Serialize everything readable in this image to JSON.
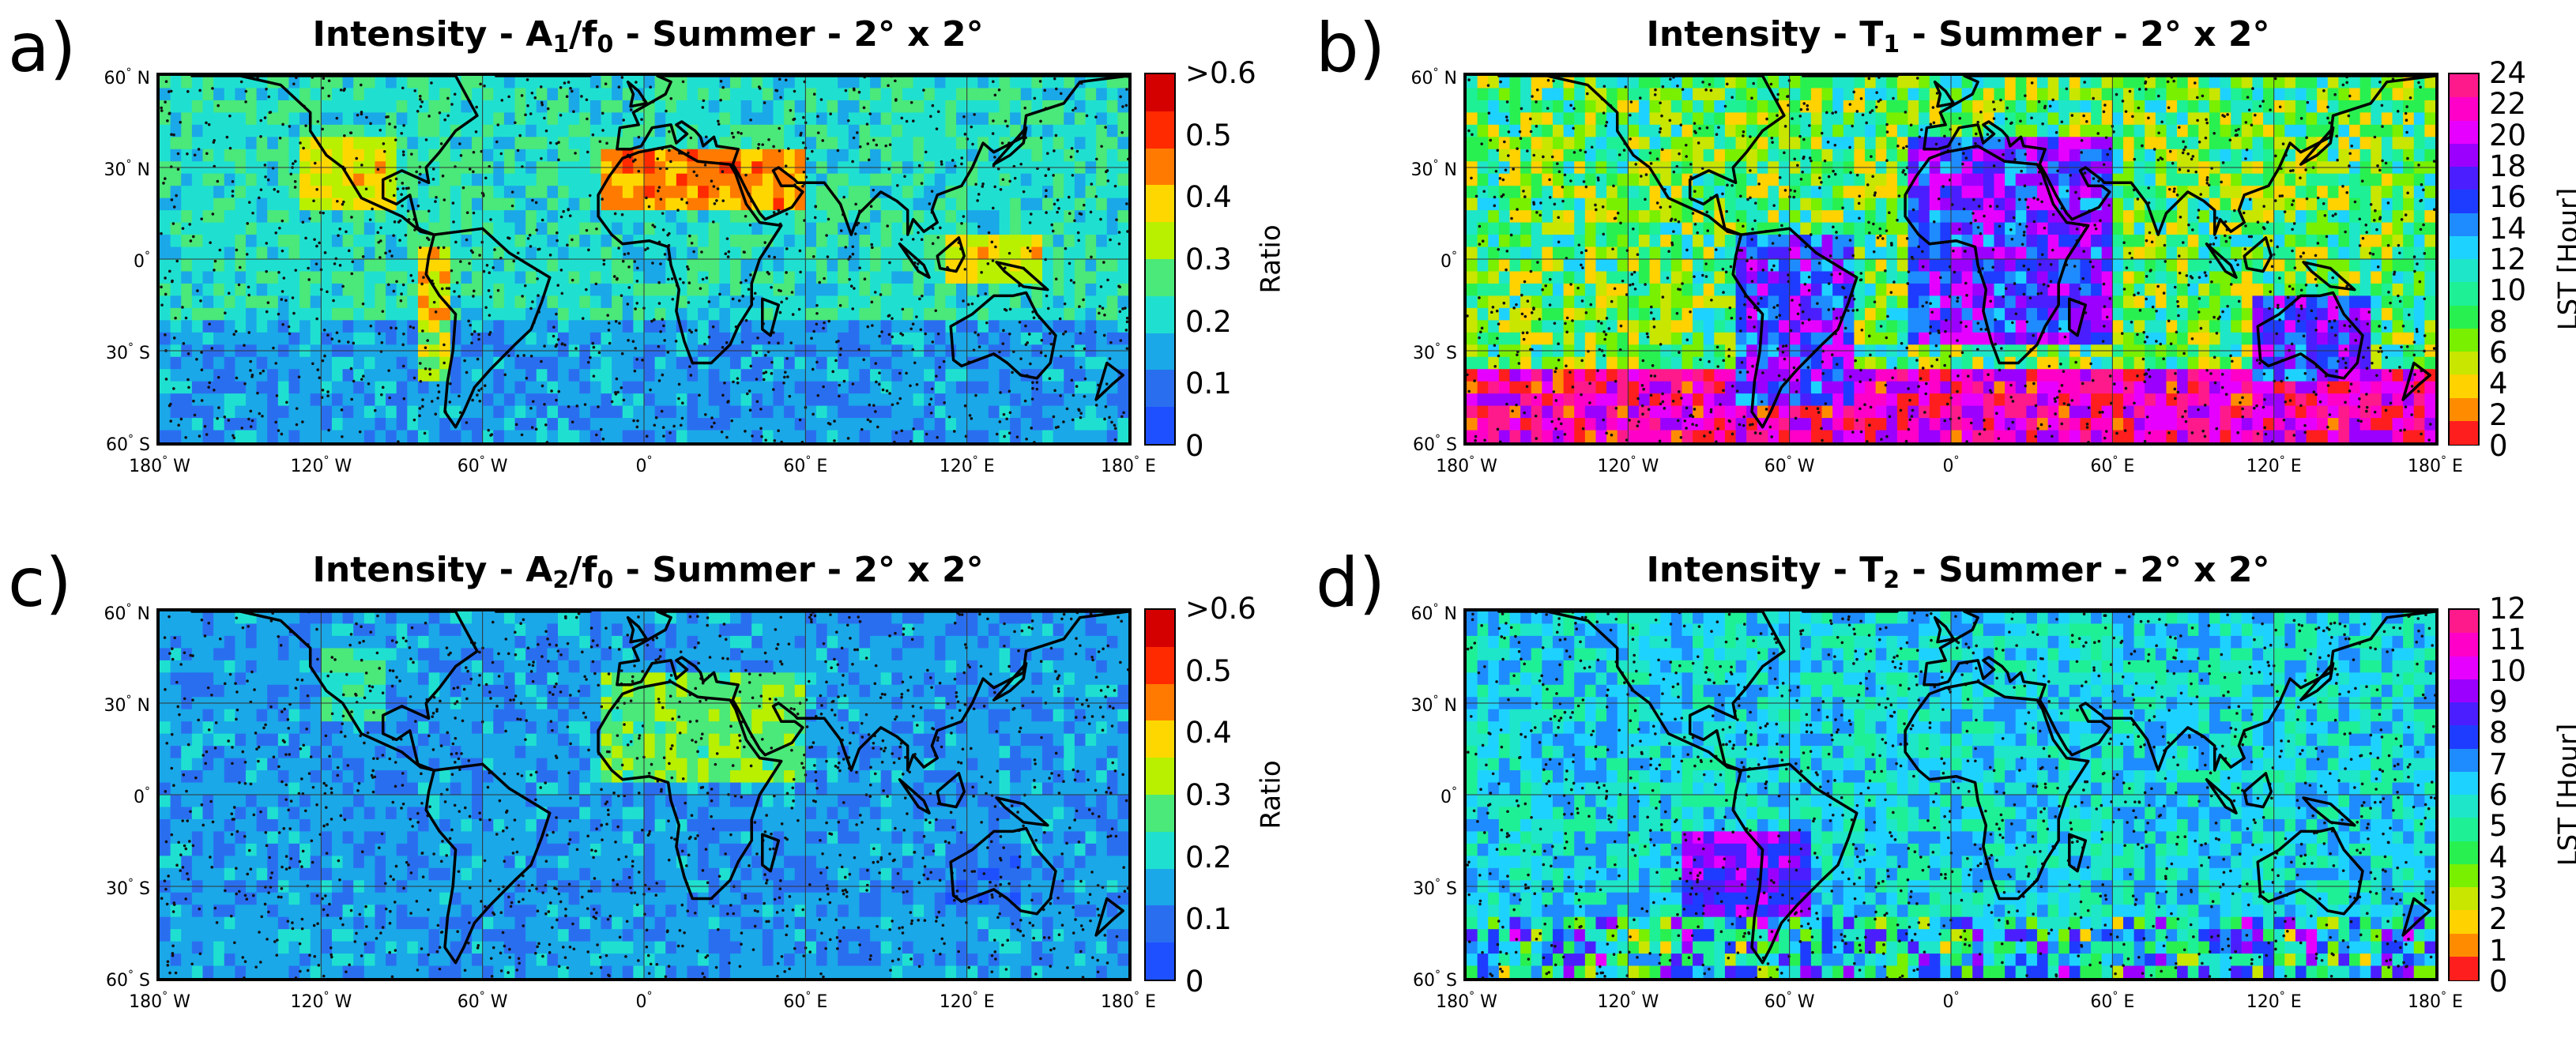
{
  "panels": [
    {
      "id": "a",
      "letter": "a)",
      "title_pre": "Intensity - A",
      "title_sub1": "1",
      "title_mid": "/f",
      "title_sub2": "0",
      "title_post": " - Summer - 2° x 2°",
      "colorbar_label": "Ratio",
      "colorbar_ticks": [
        ">0.6",
        "0.5",
        "0.4",
        "0.3",
        "0.2",
        "0.1",
        "0"
      ],
      "colorbar_colors": [
        "#d40000",
        "#ff2a00",
        "#ff7a00",
        "#ffd700",
        "#b8f000",
        "#4be87a",
        "#1fe0d0",
        "#1aa8e8",
        "#2a6ef0",
        "#1e50ff"
      ]
    },
    {
      "id": "b",
      "letter": "b)",
      "title_pre": "Intensity - T",
      "title_sub1": "1",
      "title_mid": "",
      "title_sub2": "",
      "title_post": " - Summer - 2° x 2°",
      "colorbar_label": "LST [Hour]",
      "colorbar_ticks": [
        "24",
        "22",
        "20",
        "18",
        "16",
        "14",
        "12",
        "10",
        "8",
        "6",
        "4",
        "2",
        "0"
      ],
      "colorbar_colors": [
        "#ff1a8c",
        "#ff00c8",
        "#e600ff",
        "#9b00ff",
        "#4b1eff",
        "#1e3cff",
        "#1e8cff",
        "#1ed2ff",
        "#1ee6c8",
        "#1ef096",
        "#28f050",
        "#78f000",
        "#c8e600",
        "#ffd200",
        "#ff8c00",
        "#ff1e1e"
      ]
    },
    {
      "id": "c",
      "letter": "c)",
      "title_pre": "Intensity - A",
      "title_sub1": "2",
      "title_mid": "/f",
      "title_sub2": "0",
      "title_post": " - Summer - 2° x 2°",
      "colorbar_label": "Ratio",
      "colorbar_ticks": [
        ">0.6",
        "0.5",
        "0.4",
        "0.3",
        "0.2",
        "0.1",
        "0"
      ],
      "colorbar_colors": [
        "#d40000",
        "#ff2a00",
        "#ff7a00",
        "#ffd700",
        "#b8f000",
        "#4be87a",
        "#1fe0d0",
        "#1aa8e8",
        "#2a6ef0",
        "#1e50ff"
      ]
    },
    {
      "id": "d",
      "letter": "d)",
      "title_pre": "Intensity - T",
      "title_sub1": "2",
      "title_mid": "",
      "title_sub2": "",
      "title_post": " - Summer - 2° x 2°",
      "colorbar_label": "LST [Hour]",
      "colorbar_ticks": [
        "12",
        "11",
        "10",
        "9",
        "8",
        "7",
        "6",
        "5",
        "4",
        "3",
        "2",
        "1",
        "0"
      ],
      "colorbar_colors": [
        "#ff1a8c",
        "#ff00c8",
        "#e600ff",
        "#9b00ff",
        "#4b1eff",
        "#1e3cff",
        "#1e8cff",
        "#1ed2ff",
        "#1ee6c8",
        "#1ef096",
        "#28f050",
        "#78f000",
        "#c8e600",
        "#ffd200",
        "#ff8c00",
        "#ff1e1e"
      ]
    }
  ],
  "lat_labels": [
    "60",
    "N",
    "30",
    "N",
    "0",
    "",
    "30",
    "S",
    "60",
    "S"
  ],
  "lat_ticks": [
    {
      "value": "60",
      "hemi": "N"
    },
    {
      "value": "30",
      "hemi": "N"
    },
    {
      "value": "0",
      "hemi": ""
    },
    {
      "value": "30",
      "hemi": "S"
    },
    {
      "value": "60",
      "hemi": "S"
    }
  ],
  "lon_ticks": [
    {
      "value": "180",
      "hemi": "W"
    },
    {
      "value": "120",
      "hemi": "W"
    },
    {
      "value": "60",
      "hemi": "W"
    },
    {
      "value": "0",
      "hemi": ""
    },
    {
      "value": "60",
      "hemi": "E"
    },
    {
      "value": "120",
      "hemi": "E"
    },
    {
      "value": "180",
      "hemi": "E"
    }
  ],
  "degree_symbol": "°"
}
